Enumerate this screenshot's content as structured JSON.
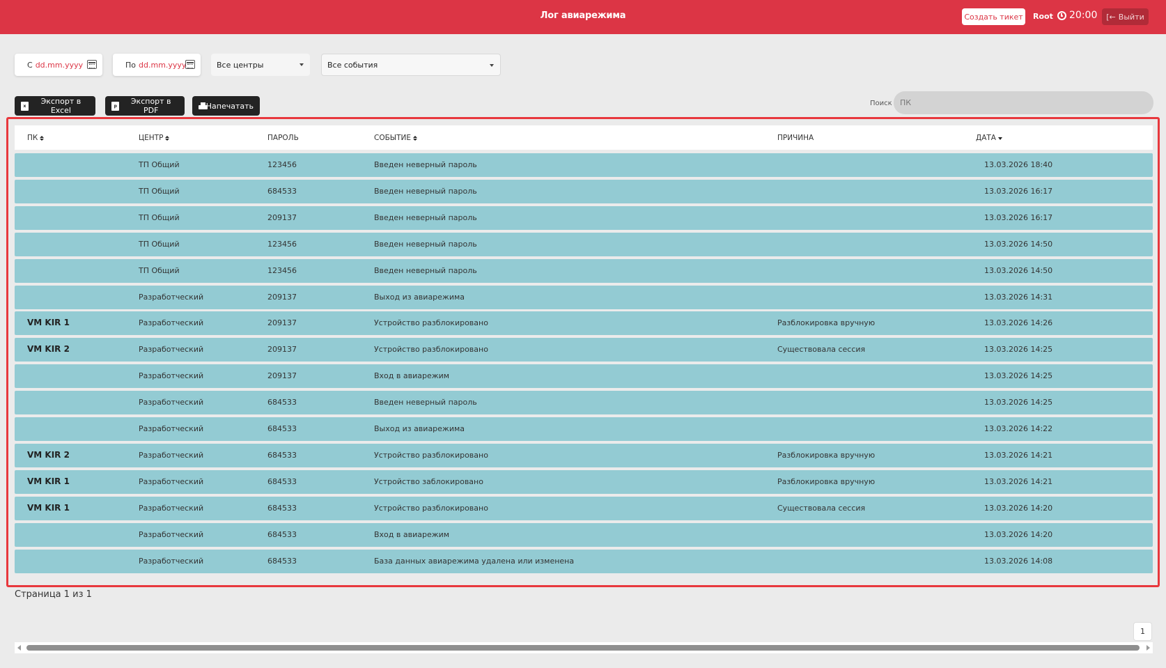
{
  "header": {
    "title": "Лог авиарежима",
    "create_ticket": "Создать тикет",
    "user": "Root",
    "time": "20:00",
    "logout": "Выйти",
    "colors": {
      "brand": "#dc3545",
      "row": "#93cbd3",
      "highlight": "#e8383d"
    }
  },
  "filters": {
    "from_label": "С",
    "from_placeholder": "dd.mm.yyyy",
    "to_label": "По",
    "to_placeholder": "dd.mm.yyyy",
    "centers": "Все центры",
    "events": "Все события"
  },
  "actions": {
    "excel": "Экспорт в Excel",
    "pdf": "Экспорт в PDF",
    "print": "Напечатать",
    "search_label": "Поиск",
    "search_placeholder": "ПК"
  },
  "table": {
    "columns": [
      "ПК",
      "ЦЕНТР",
      "ПАРОЛЬ",
      "СОБЫТИЕ",
      "ПРИЧИНА",
      "ДАТА"
    ],
    "rows": [
      {
        "pc": "",
        "center": "ТП Общий",
        "password": "123456",
        "event": "Введен неверный пароль",
        "reason": "",
        "date": "13.03.2026 18:40"
      },
      {
        "pc": "",
        "center": "ТП Общий",
        "password": "684533",
        "event": "Введен неверный пароль",
        "reason": "",
        "date": "13.03.2026 16:17"
      },
      {
        "pc": "",
        "center": "ТП Общий",
        "password": "209137",
        "event": "Введен неверный пароль",
        "reason": "",
        "date": "13.03.2026 16:17"
      },
      {
        "pc": "",
        "center": "ТП Общий",
        "password": "123456",
        "event": "Введен неверный пароль",
        "reason": "",
        "date": "13.03.2026 14:50"
      },
      {
        "pc": "",
        "center": "ТП Общий",
        "password": "123456",
        "event": "Введен неверный пароль",
        "reason": "",
        "date": "13.03.2026 14:50"
      },
      {
        "pc": "",
        "center": "Разработческий",
        "password": "209137",
        "event": "Выход из авиарежима",
        "reason": "",
        "date": "13.03.2026 14:31"
      },
      {
        "pc": "VM KIR 1",
        "center": "Разработческий",
        "password": "209137",
        "event": "Устройство разблокировано",
        "reason": "Разблокировка вручную",
        "date": "13.03.2026 14:26"
      },
      {
        "pc": "VM KIR 2",
        "center": "Разработческий",
        "password": "209137",
        "event": "Устройство разблокировано",
        "reason": "Существовала сессия",
        "date": "13.03.2026 14:25"
      },
      {
        "pc": "",
        "center": "Разработческий",
        "password": "209137",
        "event": "Вход в авиарежим",
        "reason": "",
        "date": "13.03.2026 14:25"
      },
      {
        "pc": "",
        "center": "Разработческий",
        "password": "684533",
        "event": "Введен неверный пароль",
        "reason": "",
        "date": "13.03.2026 14:25"
      },
      {
        "pc": "",
        "center": "Разработческий",
        "password": "684533",
        "event": "Выход из авиарежима",
        "reason": "",
        "date": "13.03.2026 14:22"
      },
      {
        "pc": "VM KIR 2",
        "center": "Разработческий",
        "password": "684533",
        "event": "Устройство разблокировано",
        "reason": "Разблокировка вручную",
        "date": "13.03.2026 14:21"
      },
      {
        "pc": "VM KIR 1",
        "center": "Разработческий",
        "password": "684533",
        "event": "Устройство заблокировано",
        "reason": "Разблокировка вручную",
        "date": "13.03.2026 14:21"
      },
      {
        "pc": "VM KIR 1",
        "center": "Разработческий",
        "password": "684533",
        "event": "Устройство разблокировано",
        "reason": "Существовала сессия",
        "date": "13.03.2026 14:20"
      },
      {
        "pc": "",
        "center": "Разработческий",
        "password": "684533",
        "event": "Вход в авиарежим",
        "reason": "",
        "date": "13.03.2026 14:20"
      },
      {
        "pc": "",
        "center": "Разработческий",
        "password": "684533",
        "event": "База данных авиарежима удалена или изменена",
        "reason": "",
        "date": "13.03.2026 14:08"
      }
    ]
  },
  "pagination": {
    "info": "Страница 1 из 1",
    "current_page": "1"
  }
}
